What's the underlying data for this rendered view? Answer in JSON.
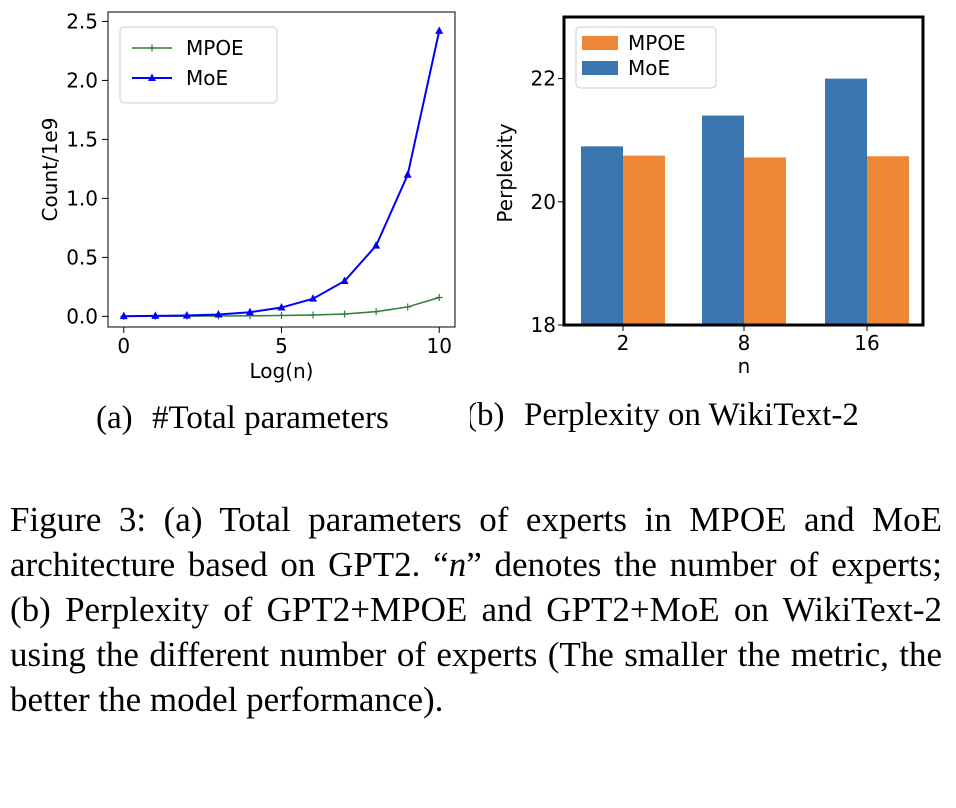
{
  "chart_data": [
    {
      "type": "line",
      "subfigure_label": "(a)",
      "title": "#Total parameters",
      "xlabel": "Log(n)",
      "ylabel": "Count/1e9",
      "xlim": [
        0,
        10
      ],
      "ylim": [
        0,
        2.5
      ],
      "xticks": [
        0,
        5,
        10
      ],
      "yticks": [
        0.0,
        0.5,
        1.0,
        1.5,
        2.0,
        2.5
      ],
      "xtick_labels": [
        "0",
        "5",
        "10"
      ],
      "ytick_labels": [
        "0.0",
        "0.5",
        "1.0",
        "1.5",
        "2.0",
        "2.5"
      ],
      "grid": false,
      "legend_position": "top-left",
      "x": [
        0,
        1,
        2,
        3,
        4,
        5,
        6,
        7,
        8,
        9,
        10
      ],
      "series": [
        {
          "name": "MPOE",
          "color": "#2e7d32",
          "marker": "plus",
          "values": [
            0.0005,
            0.001,
            0.002,
            0.003,
            0.005,
            0.008,
            0.012,
            0.02,
            0.04,
            0.08,
            0.16
          ]
        },
        {
          "name": "MoE",
          "color": "#0000ff",
          "marker": "triangle",
          "values": [
            0.002,
            0.004,
            0.008,
            0.016,
            0.035,
            0.075,
            0.15,
            0.3,
            0.6,
            1.2,
            2.42
          ]
        }
      ]
    },
    {
      "type": "bar",
      "subfigure_label": "(b)",
      "title": "Perplexity on WikiText-2",
      "xlabel": "n",
      "ylabel": "Perplexity",
      "categories": [
        "2",
        "8",
        "16"
      ],
      "ylim": [
        18,
        23
      ],
      "yticks": [
        18,
        20,
        22
      ],
      "ytick_labels": [
        "18",
        "20",
        "22"
      ],
      "grid": false,
      "legend_position": "top-left",
      "series": [
        {
          "name": "MoE",
          "color": "#3a75b0",
          "values": [
            20.9,
            21.4,
            22.0
          ]
        },
        {
          "name": "MPOE",
          "color": "#ee8838",
          "values": [
            20.75,
            20.72,
            20.74
          ]
        }
      ],
      "legend_order": [
        "MPOE",
        "MoE"
      ]
    }
  ],
  "caption": {
    "label": "Figure 3:",
    "part1": "(a) Total parameters of experts in MPOE and MoE architecture based on GPT2. “",
    "var": "n",
    "part2": "” denotes the number of experts; (b) Perplexity of GPT2+MPOE and GPT2+MoE on WikiText-2 using the different number of experts (The smaller the metric, the better the model performance)."
  }
}
